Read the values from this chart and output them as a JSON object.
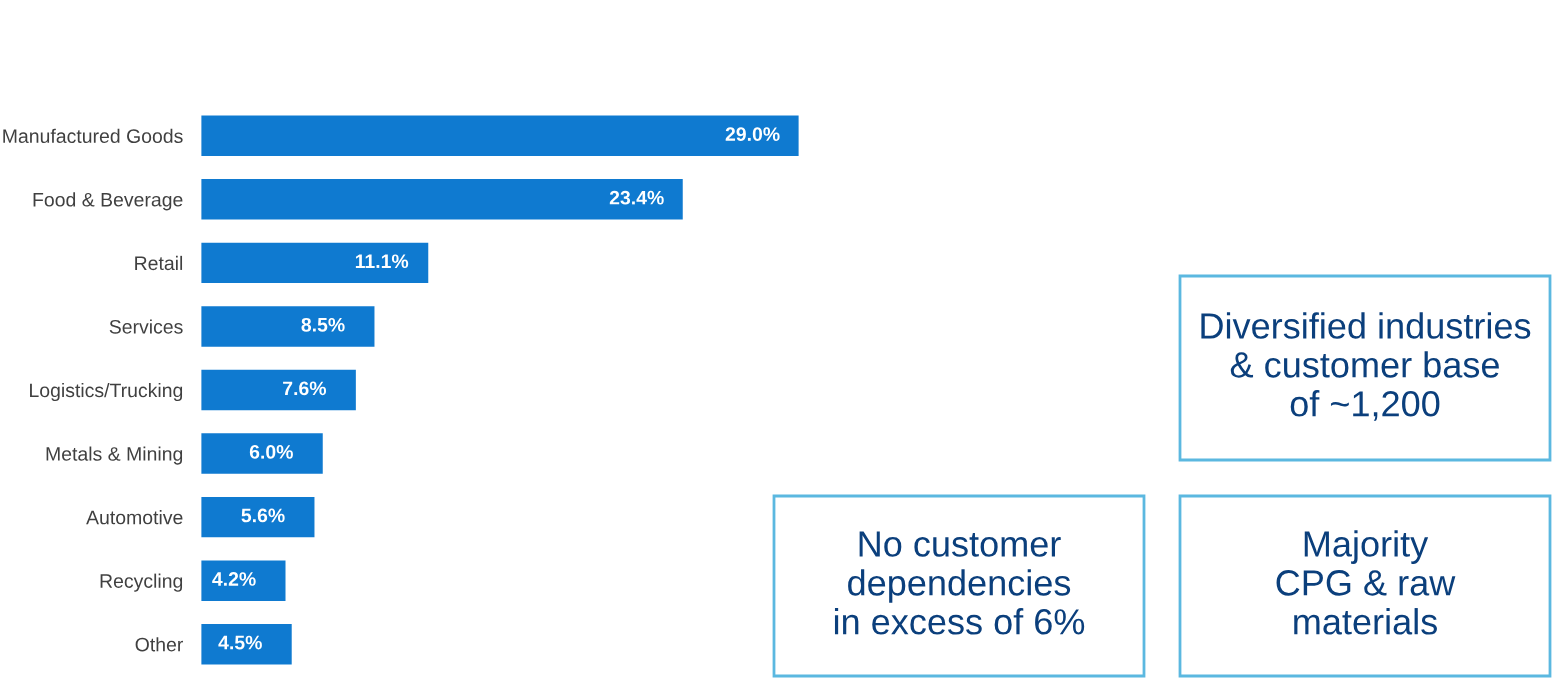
{
  "chart_data": {
    "type": "bar",
    "orientation": "horizontal",
    "data_labels": true,
    "categories": [
      "Manufactured Goods",
      "Food & Beverage",
      "Retail",
      "Services",
      "Logistics/Trucking",
      "Metals & Mining",
      "Automotive",
      "Recycling",
      "Other"
    ],
    "values": [
      29.0,
      23.4,
      11.1,
      8.5,
      7.6,
      6.0,
      5.6,
      4.2,
      4.5
    ],
    "value_labels": [
      "29.0%",
      "23.4%",
      "11.1%",
      "8.5%",
      "7.6%",
      "6.0%",
      "5.6%",
      "4.2%",
      "4.5%"
    ],
    "color": "#0f7ad0",
    "annotations": [
      "Diversified industries\n& customer base\nof ~1,200",
      "No customer\ndependencies\nin excess of 6%",
      "Majority\nCPG & raw\nmaterials"
    ]
  }
}
